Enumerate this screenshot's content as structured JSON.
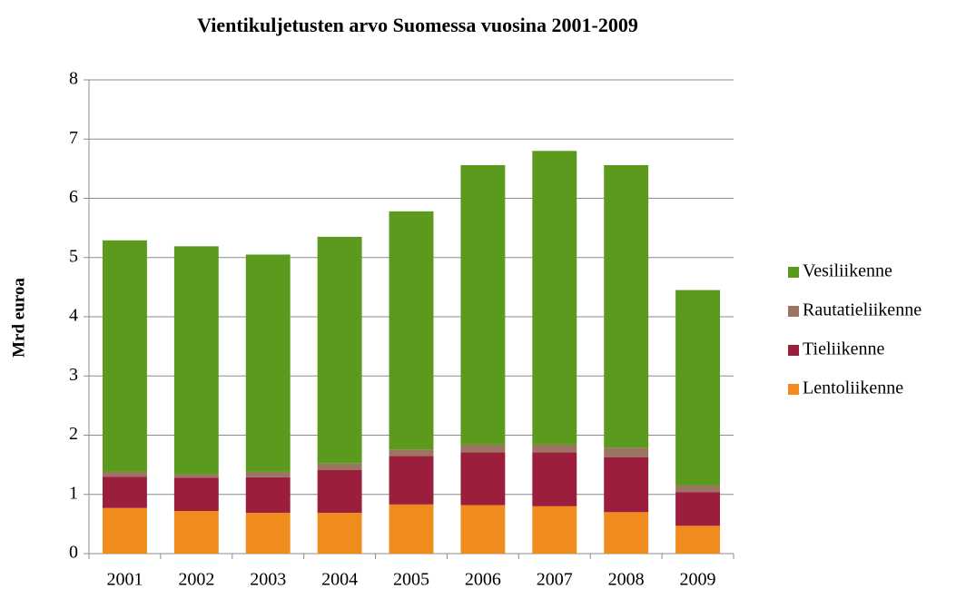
{
  "chart_data": {
    "type": "stacked-bar",
    "title": "Vientikuljetusten arvo Suomessa vuosina 2001-2009",
    "y_label": "Mrd euroa",
    "categories": [
      "2001",
      "2002",
      "2003",
      "2004",
      "2005",
      "2006",
      "2007",
      "2008",
      "2009"
    ],
    "series": [
      {
        "name": "Lentoliikenne",
        "color": "#f08c1e",
        "values": [
          0.77,
          0.72,
          0.69,
          0.69,
          0.83,
          0.82,
          0.8,
          0.7,
          0.47
        ]
      },
      {
        "name": "Tieliikenne",
        "color": "#9b1f3c",
        "values": [
          0.53,
          0.56,
          0.6,
          0.72,
          0.82,
          0.89,
          0.91,
          0.93,
          0.57
        ]
      },
      {
        "name": "Rautatieliikenne",
        "color": "#9b7462",
        "values": [
          0.08,
          0.06,
          0.09,
          0.11,
          0.11,
          0.13,
          0.13,
          0.16,
          0.11
        ]
      },
      {
        "name": "Vesiliikenne",
        "color": "#5c9a1e",
        "values": [
          3.91,
          3.85,
          3.67,
          3.83,
          4.02,
          4.72,
          4.96,
          4.77,
          3.3
        ]
      }
    ],
    "ylim": [
      0,
      8
    ],
    "yticks": [
      0,
      1,
      2,
      3,
      4,
      5,
      6,
      7,
      8
    ],
    "grid": true,
    "legend": "right"
  }
}
